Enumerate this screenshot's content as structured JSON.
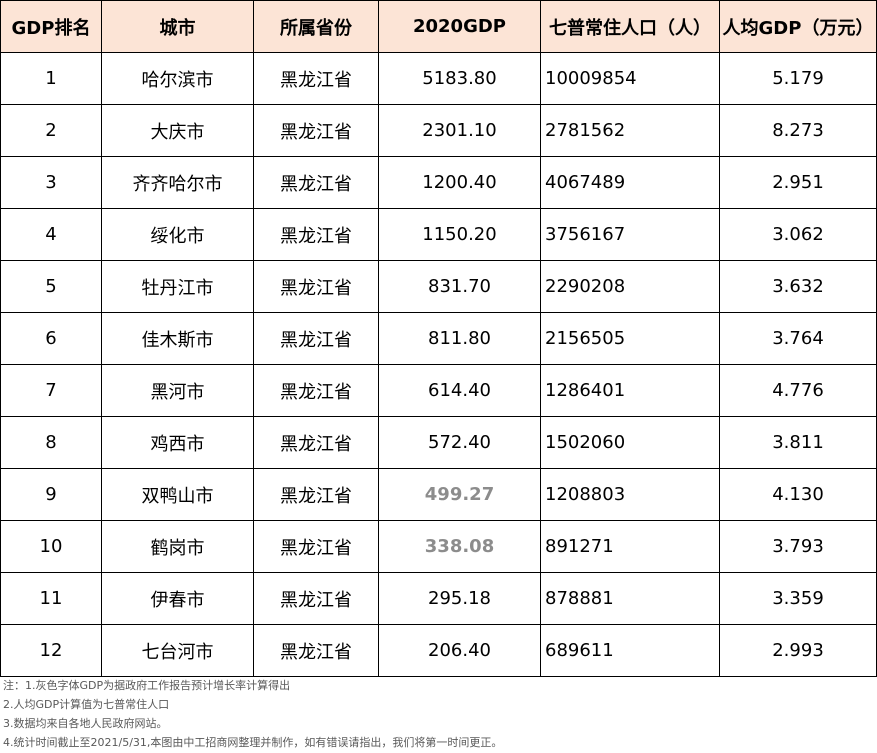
{
  "table": {
    "headers": [
      "GDP排名",
      "城市",
      "所属省份",
      "2020GDP",
      "七普常住人口（人）",
      "人均GDP（万元）"
    ],
    "rows": [
      {
        "rank": "1",
        "city": "哈尔滨市",
        "province": "黑龙江省",
        "gdp": "5183.80",
        "population": "10009854",
        "per_capita": "5.179",
        "estimated": false
      },
      {
        "rank": "2",
        "city": "大庆市",
        "province": "黑龙江省",
        "gdp": "2301.10",
        "population": "2781562",
        "per_capita": "8.273",
        "estimated": false
      },
      {
        "rank": "3",
        "city": "齐齐哈尔市",
        "province": "黑龙江省",
        "gdp": "1200.40",
        "population": "4067489",
        "per_capita": "2.951",
        "estimated": false
      },
      {
        "rank": "4",
        "city": "绥化市",
        "province": "黑龙江省",
        "gdp": "1150.20",
        "population": "3756167",
        "per_capita": "3.062",
        "estimated": false
      },
      {
        "rank": "5",
        "city": "牡丹江市",
        "province": "黑龙江省",
        "gdp": "831.70",
        "population": "2290208",
        "per_capita": "3.632",
        "estimated": false
      },
      {
        "rank": "6",
        "city": "佳木斯市",
        "province": "黑龙江省",
        "gdp": "811.80",
        "population": "2156505",
        "per_capita": "3.764",
        "estimated": false
      },
      {
        "rank": "7",
        "city": "黑河市",
        "province": "黑龙江省",
        "gdp": "614.40",
        "population": "1286401",
        "per_capita": "4.776",
        "estimated": false
      },
      {
        "rank": "8",
        "city": "鸡西市",
        "province": "黑龙江省",
        "gdp": "572.40",
        "population": "1502060",
        "per_capita": "3.811",
        "estimated": false
      },
      {
        "rank": "9",
        "city": "双鸭山市",
        "province": "黑龙江省",
        "gdp": "499.27",
        "population": "1208803",
        "per_capita": "4.130",
        "estimated": true
      },
      {
        "rank": "10",
        "city": "鹤岗市",
        "province": "黑龙江省",
        "gdp": "338.08",
        "population": "891271",
        "per_capita": "3.793",
        "estimated": true
      },
      {
        "rank": "11",
        "city": "伊春市",
        "province": "黑龙江省",
        "gdp": "295.18",
        "population": "878881",
        "per_capita": "3.359",
        "estimated": false
      },
      {
        "rank": "12",
        "city": "七台河市",
        "province": "黑龙江省",
        "gdp": "206.40",
        "population": "689611",
        "per_capita": "2.993",
        "estimated": false
      }
    ]
  },
  "notes": [
    "注：1.灰色字体GDP为据政府工作报告预计增长率计算得出",
    "2.人均GDP计算值为七普常住人口",
    "3.数据均来自各地人民政府网站。",
    "4.统计时间截止至2021/5/31,本图由中工招商网整理并制作，如有错误请指出，我们将第一时间更正。"
  ],
  "colors": {
    "header_bg": "#fce4d6",
    "estimated_text": "#8c8c8c",
    "border": "#000000"
  }
}
